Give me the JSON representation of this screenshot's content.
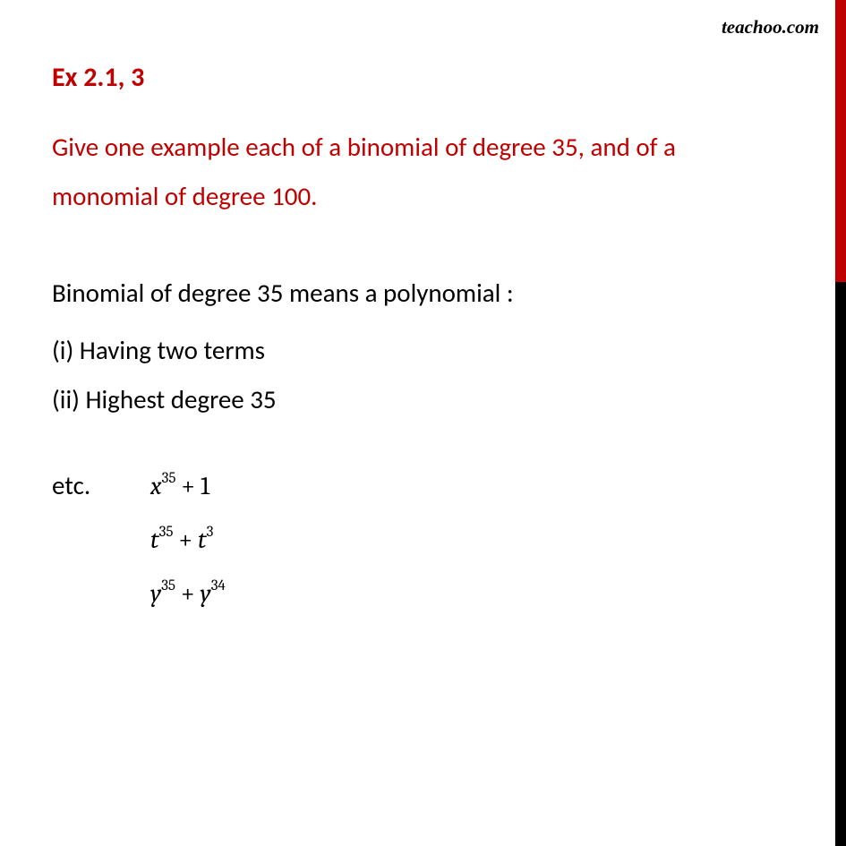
{
  "watermark": "teachoo.com",
  "heading": "Ex 2.1, 3",
  "question": "Give one example each of a binomial of degree 35, and of a monomial of degree 100.",
  "explain_intro": "Binomial of degree 35 means a polynomial :",
  "point_i": "(i) Having  two  terms",
  "point_ii": "(ii) Highest degree 35",
  "etc_label": "etc.",
  "expressions": {
    "e1": {
      "var": "x",
      "exp1": "35",
      "op": "+",
      "term2_num": "1"
    },
    "e2": {
      "var": "t",
      "exp1": "35",
      "op": "+",
      "var2": "t",
      "exp2": "3"
    },
    "e3": {
      "var": "y",
      "exp1": "35",
      "op": "+",
      "var2": "y",
      "exp2": "34"
    }
  },
  "colors": {
    "accent_red": "#c00000",
    "black": "#000000",
    "background": "#ffffff"
  }
}
